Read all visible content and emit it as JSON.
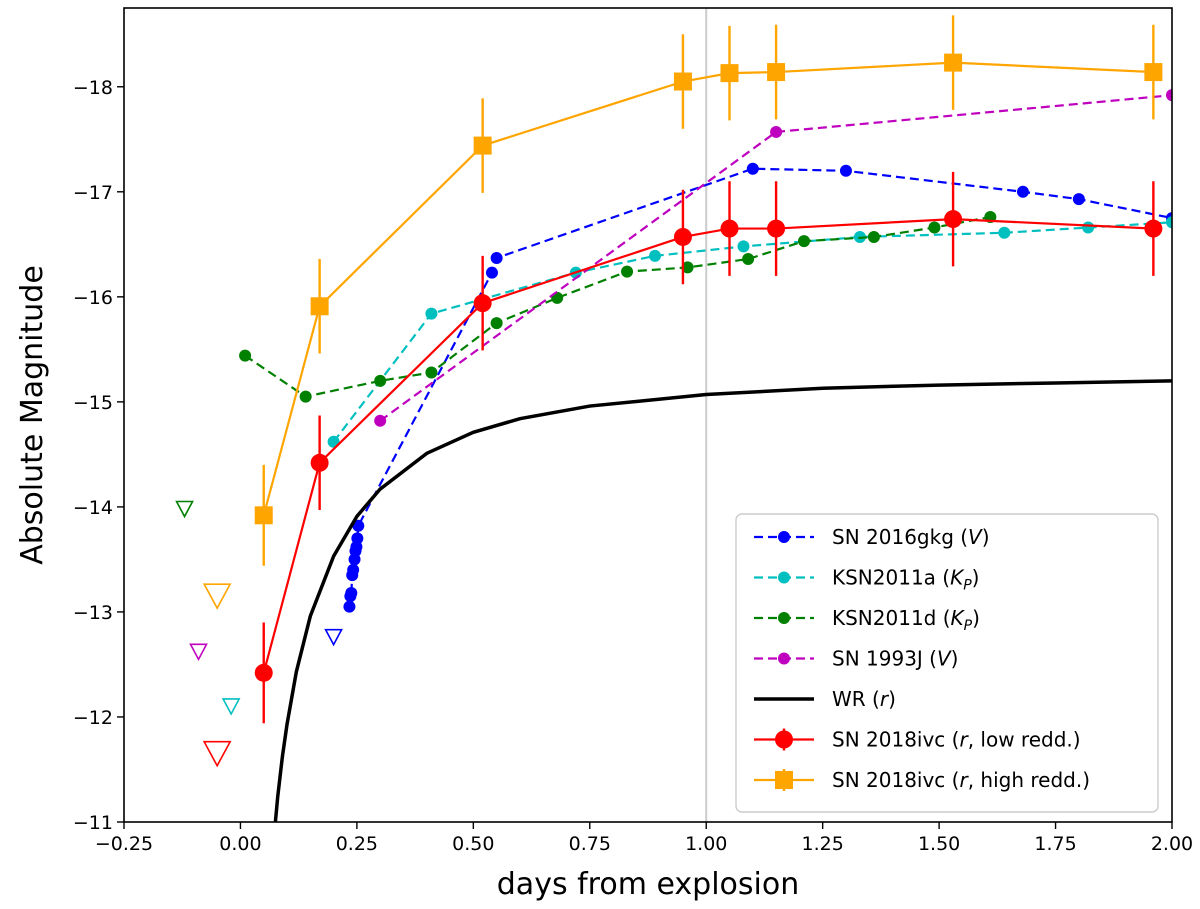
{
  "chart_data": {
    "type": "line",
    "title": "",
    "xlabel": "days from explosion",
    "ylabel": "Absolute Magnitude",
    "xlim": [
      -0.25,
      2.0
    ],
    "ylim": [
      -11,
      -18.75
    ],
    "y_inverted": true,
    "grid": false,
    "legend_position": "lower-right",
    "x_ticks": [
      -0.25,
      0.0,
      0.25,
      0.5,
      0.75,
      1.0,
      1.25,
      1.5,
      1.75,
      2.0
    ],
    "x_tick_labels": [
      "−0.25",
      "0.00",
      "0.25",
      "0.50",
      "0.75",
      "1.00",
      "1.25",
      "1.50",
      "1.75",
      "2.00"
    ],
    "y_ticks": [
      -11,
      -12,
      -13,
      -14,
      -15,
      -16,
      -17,
      -18
    ],
    "y_tick_labels": [
      "−11",
      "−12",
      "−13",
      "−14",
      "−15",
      "−16",
      "−17",
      "−18"
    ],
    "vertical_line": {
      "x": 1.0,
      "color": "#cccccc"
    },
    "series": [
      {
        "name": "SN 2016gkg",
        "band": "V",
        "color": "#0000ff",
        "style": "dashed",
        "marker": "circle",
        "x": [
          0.234,
          0.236,
          0.238,
          0.24,
          0.242,
          0.245,
          0.247,
          0.249,
          0.251,
          0.253,
          0.54,
          0.55,
          1.1,
          1.3,
          1.68,
          1.8,
          2.0
        ],
        "y": [
          -13.05,
          -13.15,
          -13.18,
          -13.35,
          -13.4,
          -13.5,
          -13.58,
          -13.62,
          -13.7,
          -13.82,
          -16.23,
          -16.37,
          -17.22,
          -17.2,
          -17.0,
          -16.93,
          -16.75
        ]
      },
      {
        "name": "KSN2011a",
        "band": "K_P",
        "color": "#00bfbf",
        "style": "dashed",
        "marker": "circle",
        "x": [
          0.2,
          0.41,
          0.72,
          0.89,
          1.08,
          1.33,
          1.64,
          1.82,
          2.0
        ],
        "y": [
          -14.62,
          -15.84,
          -16.23,
          -16.39,
          -16.48,
          -16.57,
          -16.61,
          -16.66,
          -16.71
        ]
      },
      {
        "name": "KSN2011d",
        "band": "K_P",
        "color": "#008000",
        "style": "dashed",
        "marker": "circle",
        "x": [
          0.01,
          0.14,
          0.3,
          0.41,
          0.55,
          0.68,
          0.83,
          0.96,
          1.09,
          1.21,
          1.36,
          1.49,
          1.61
        ],
        "y": [
          -15.44,
          -15.05,
          -15.2,
          -15.28,
          -15.75,
          -15.99,
          -16.24,
          -16.28,
          -16.36,
          -16.53,
          -16.57,
          -16.66,
          -16.76
        ]
      },
      {
        "name": "SN 1993J",
        "band": "V",
        "color": "#bf00bf",
        "style": "dashed",
        "marker": "circle",
        "x": [
          0.3,
          1.15,
          2.0
        ],
        "y": [
          -14.82,
          -17.57,
          -17.92
        ]
      },
      {
        "name": "WR",
        "band": "r",
        "color": "#000000",
        "style": "solid",
        "marker": "none",
        "model": "y = -16.2 + 2.95*log10(x) asymptote curve",
        "x": [
          0.075,
          0.08,
          0.09,
          0.1,
          0.12,
          0.15,
          0.2,
          0.25,
          0.3,
          0.4,
          0.5,
          0.6,
          0.75,
          1.0,
          1.25,
          1.5,
          1.75,
          2.0
        ],
        "y": [
          -11.0,
          -11.24,
          -11.62,
          -11.93,
          -12.43,
          -12.96,
          -13.53,
          -13.91,
          -14.17,
          -14.51,
          -14.71,
          -14.84,
          -14.96,
          -15.07,
          -15.13,
          -15.16,
          -15.18,
          -15.2
        ]
      },
      {
        "name": "SN 2018ivc",
        "band": "r, low redd.",
        "color": "#ff0000",
        "style": "solid",
        "marker": "circle-large",
        "x": [
          0.05,
          0.17,
          0.52,
          0.95,
          1.05,
          1.15,
          1.53,
          1.96
        ],
        "y": [
          -12.42,
          -14.42,
          -15.94,
          -16.57,
          -16.65,
          -16.65,
          -16.74,
          -16.65
        ],
        "yerr": [
          0.48,
          0.45,
          0.45,
          0.45,
          0.45,
          0.45,
          0.45,
          0.45
        ]
      },
      {
        "name": "SN 2018ivc",
        "band": "r, high redd.",
        "color": "#ffa500",
        "style": "solid",
        "marker": "square",
        "x": [
          0.05,
          0.17,
          0.52,
          0.95,
          1.05,
          1.15,
          1.53,
          1.96
        ],
        "y": [
          -13.92,
          -15.91,
          -17.44,
          -18.05,
          -18.13,
          -18.14,
          -18.23,
          -18.14
        ],
        "yerr": [
          0.48,
          0.45,
          0.45,
          0.45,
          0.45,
          0.45,
          0.45,
          0.45
        ]
      }
    ],
    "upper_limits": [
      {
        "x": -0.12,
        "y": -13.98,
        "color": "#008000",
        "size": "small"
      },
      {
        "x": -0.05,
        "y": -13.15,
        "color": "#ffa500",
        "size": "large"
      },
      {
        "x": -0.09,
        "y": -12.62,
        "color": "#bf00bf",
        "size": "small"
      },
      {
        "x": 0.2,
        "y": -12.76,
        "color": "#0000ff",
        "size": "small"
      },
      {
        "x": -0.02,
        "y": -12.1,
        "color": "#00bfbf",
        "size": "small"
      },
      {
        "x": -0.05,
        "y": -11.65,
        "color": "#ff0000",
        "size": "large"
      }
    ],
    "legend": [
      {
        "label": "SN 2016gkg",
        "band": "V",
        "suffix": ""
      },
      {
        "label": "KSN2011a",
        "band": "K",
        "sub": "P",
        "suffix": ""
      },
      {
        "label": "KSN2011d",
        "band": "K",
        "sub": "P",
        "suffix": ""
      },
      {
        "label": "SN 1993J",
        "band": "V",
        "suffix": ""
      },
      {
        "label": "WR",
        "band": "r",
        "suffix": ""
      },
      {
        "label": "SN 2018ivc",
        "band": "r",
        "suffix": ", low redd."
      },
      {
        "label": "SN 2018ivc",
        "band": "r",
        "suffix": ", high redd."
      }
    ]
  }
}
